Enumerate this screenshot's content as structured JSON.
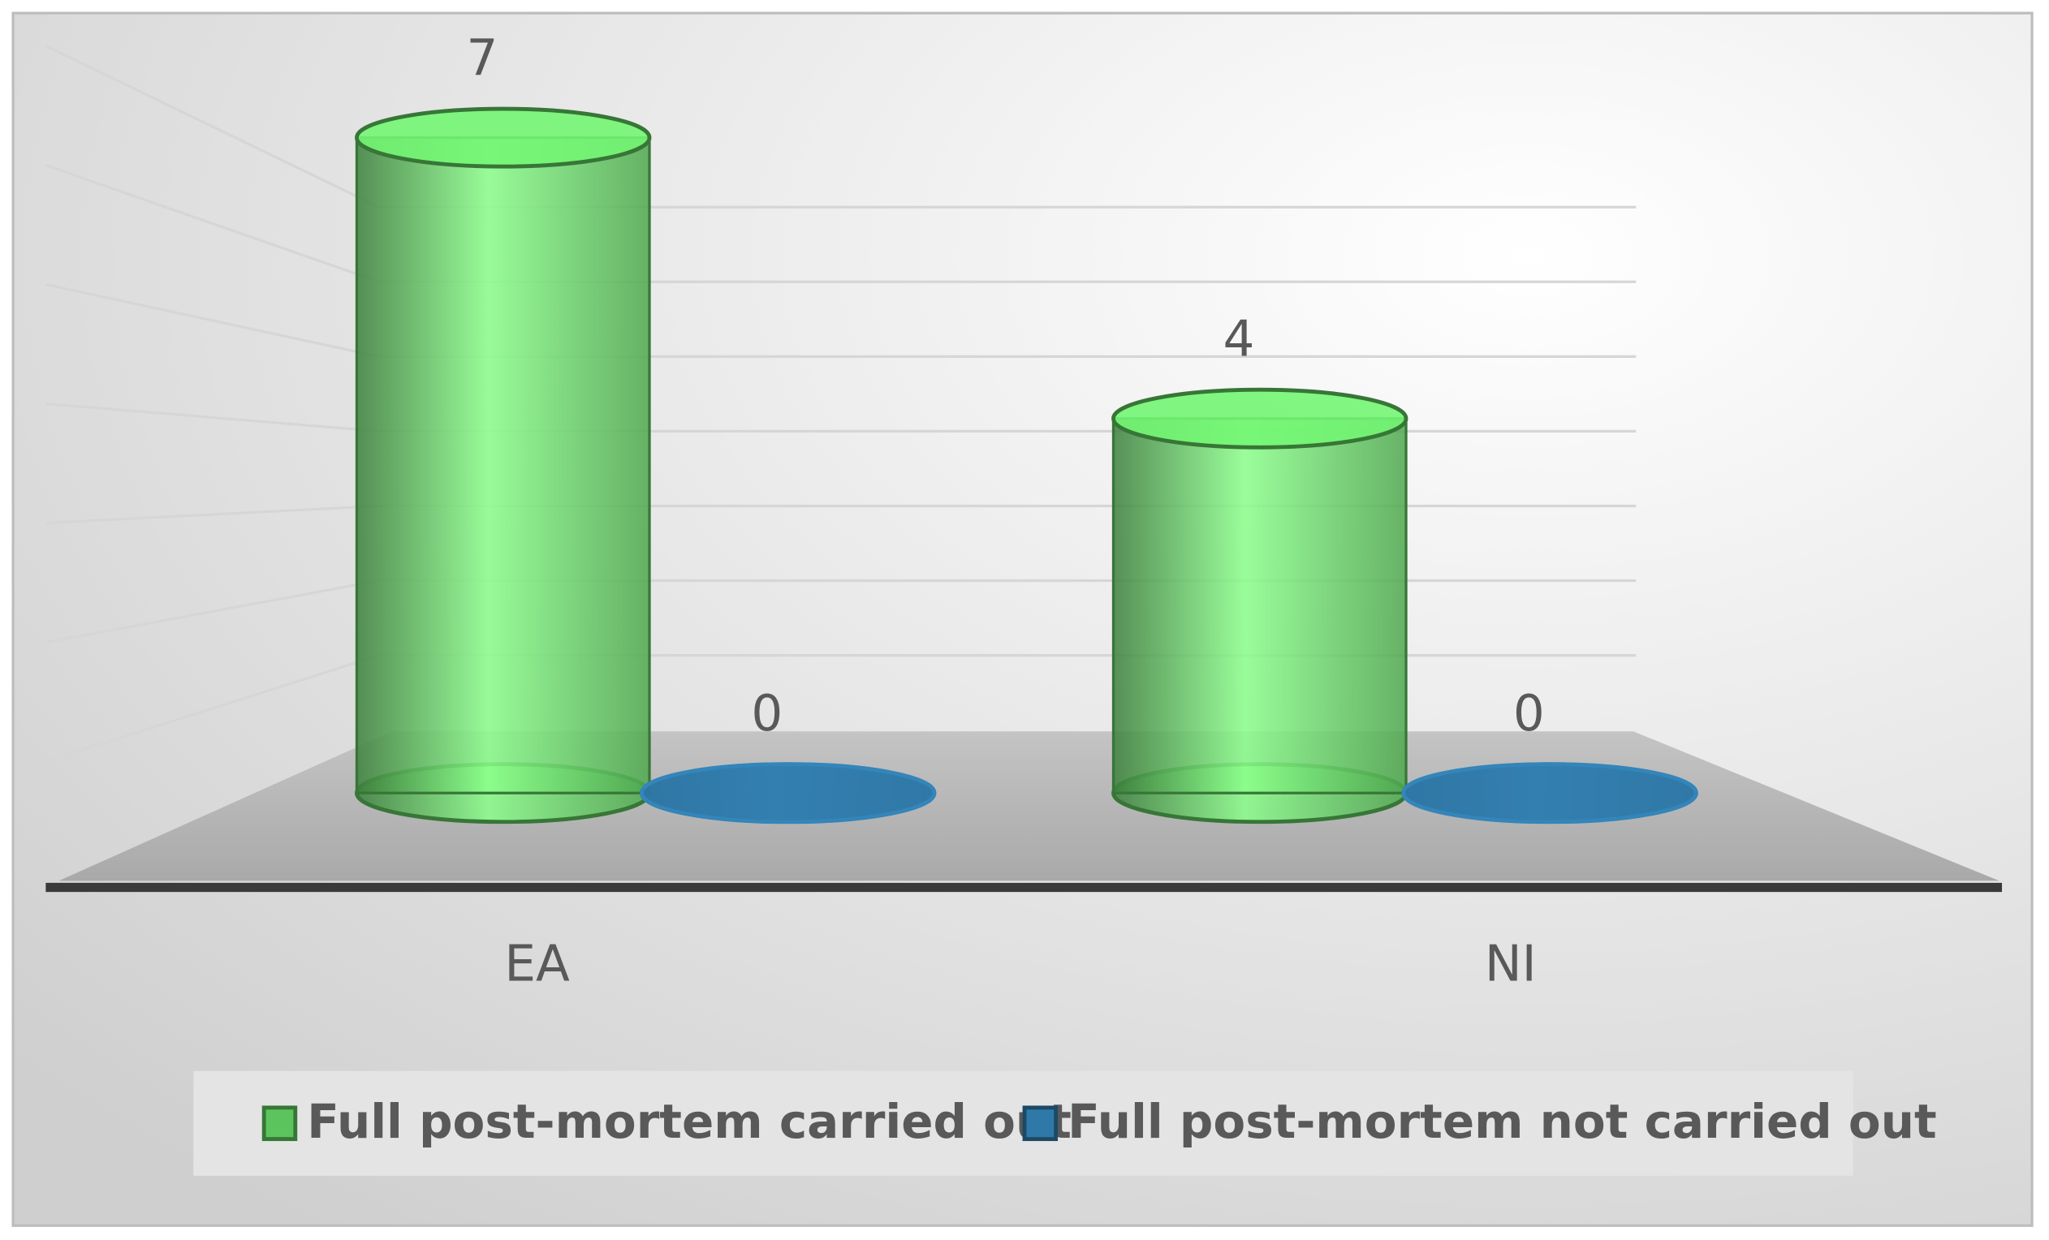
{
  "chart_data": {
    "type": "bar3d",
    "categories": [
      "EA",
      "NI"
    ],
    "series": [
      {
        "name": "Full post-mortem carried out",
        "color": "#5cc45c",
        "values": [
          7,
          4
        ]
      },
      {
        "name": "Full post-mortem not carried out",
        "color": "#2f79a8",
        "values": [
          0,
          0
        ]
      }
    ],
    "ylim": [
      0,
      8
    ],
    "yticks": [
      1,
      2,
      3,
      4,
      5,
      6,
      7
    ],
    "grid": true,
    "legend": "bottom"
  }
}
